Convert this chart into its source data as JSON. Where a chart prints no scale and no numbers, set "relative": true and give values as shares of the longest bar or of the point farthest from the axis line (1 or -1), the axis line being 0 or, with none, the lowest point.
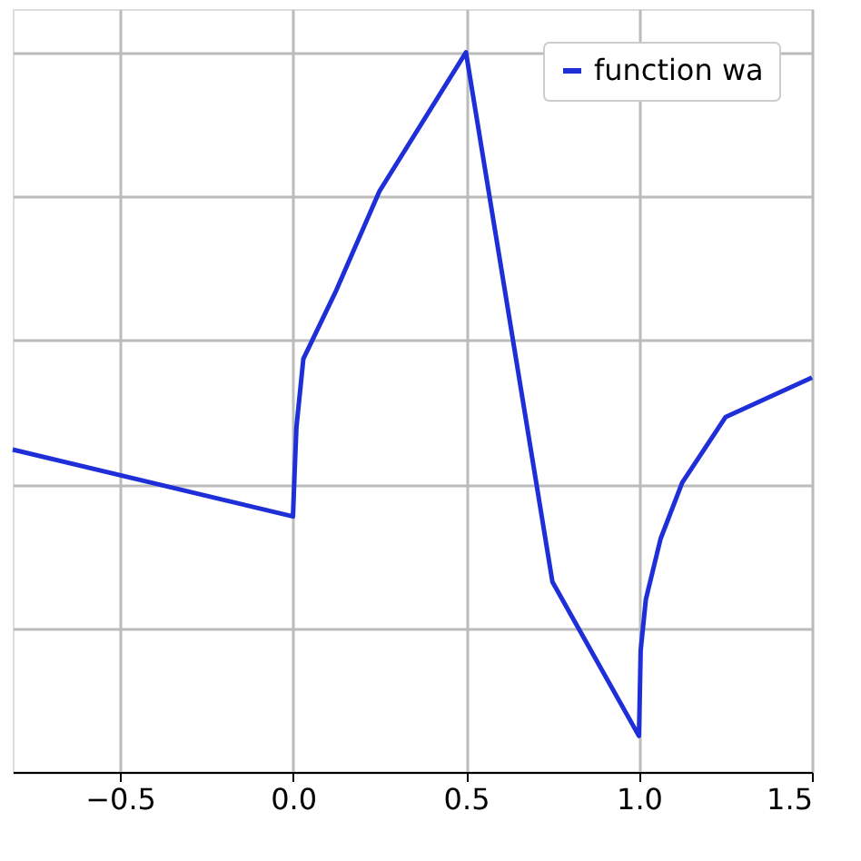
{
  "chart_data": {
    "type": "line",
    "relative": true,
    "xlim": [
      -0.81,
      1.5
    ],
    "xticks": [
      {
        "value": -0.5,
        "label": "−0.5"
      },
      {
        "value": 0,
        "label": "0.0"
      },
      0.5,
      {
        "value": 1,
        "label": "1.0"
      },
      1.5
    ],
    "grid": true,
    "legend": "top right",
    "marker": "none",
    "line_style": "solid",
    "series": [
      {
        "name": "function wa",
        "color": "#1f2fd8",
        "x": [
          -0.81,
          0.0,
          0.005,
          0.01,
          0.03,
          0.125,
          0.25,
          0.5,
          0.75,
          1.0,
          1.005,
          1.02,
          1.0625,
          1.125,
          1.25,
          1.5
        ],
        "values": [
          0.448,
          0.355,
          0.419,
          0.479,
          0.574,
          0.669,
          0.807,
          1.0,
          0.264,
          0.05,
          0.169,
          0.24,
          0.324,
          0.402,
          0.493,
          0.548
        ]
      }
    ]
  }
}
